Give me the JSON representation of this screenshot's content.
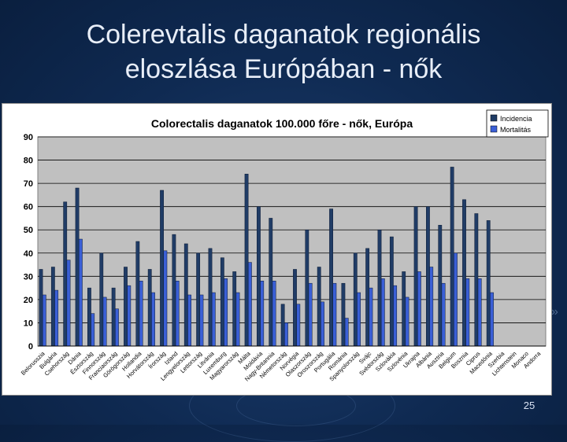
{
  "slide": {
    "title_line1": "Colerevtalis daganatok regionális",
    "title_line2": "eloszlása Európában - nők",
    "page_number": "25"
  },
  "colors": {
    "background": "#0f2a52",
    "incidence": "#203c66",
    "mortality": "#3a5fd6",
    "plot_area": "#c0c0c0"
  },
  "chart_data": {
    "type": "bar",
    "title": "Colorectalis daganatok 100.000 főre - nők, Európa",
    "xlabel": "",
    "ylabel": "",
    "ylim": [
      0,
      90
    ],
    "yticks": [
      0,
      10,
      20,
      30,
      40,
      50,
      60,
      70,
      80,
      90
    ],
    "grid": true,
    "legend_position": "top-right",
    "categories": [
      "Belorusszia",
      "Bulgária",
      "Csehország",
      "Dánia",
      "Észtország",
      "Finnország",
      "Franciaország",
      "Görögország",
      "Hollandia",
      "Horvátország",
      "Írország",
      "Izland",
      "Lengyelország",
      "Lettország",
      "Litvánia",
      "Luxemburg",
      "Magyarország",
      "Málta",
      "Moldávia",
      "Nagy-Britannia",
      "Németország",
      "Norvégia",
      "Olaszország",
      "Oroszország",
      "Portugália",
      "Románia",
      "Spanyolország",
      "Svájc",
      "Svédország",
      "Szlovákia",
      "Szlovénia",
      "Ukrajna",
      "Albánia",
      "Ausztria",
      "Belgium",
      "Bosznia",
      "Ciprus",
      "Macedónia",
      "Szerbia",
      "Lichtenstein",
      "Monaco",
      "Andorra"
    ],
    "series": [
      {
        "name": "Incidencia",
        "values": [
          33,
          34,
          62,
          68,
          25,
          40,
          25,
          34,
          45,
          33,
          67,
          48,
          44,
          40,
          42,
          38,
          32,
          74,
          60,
          55,
          18,
          33,
          50,
          34,
          59,
          27,
          40,
          42,
          50,
          47,
          32,
          60,
          60,
          52,
          77,
          63,
          57,
          54,
          0,
          0,
          0,
          0
        ]
      },
      {
        "name": "Mortalitás",
        "values": [
          22,
          24,
          37,
          46,
          14,
          21,
          16,
          26,
          28,
          23,
          41,
          28,
          22,
          22,
          23,
          29,
          23,
          36,
          28,
          28,
          10,
          18,
          27,
          19,
          27,
          12,
          23,
          25,
          29,
          26,
          21,
          32,
          34,
          27,
          40,
          29,
          29,
          23,
          0,
          0,
          0,
          0
        ]
      }
    ]
  }
}
